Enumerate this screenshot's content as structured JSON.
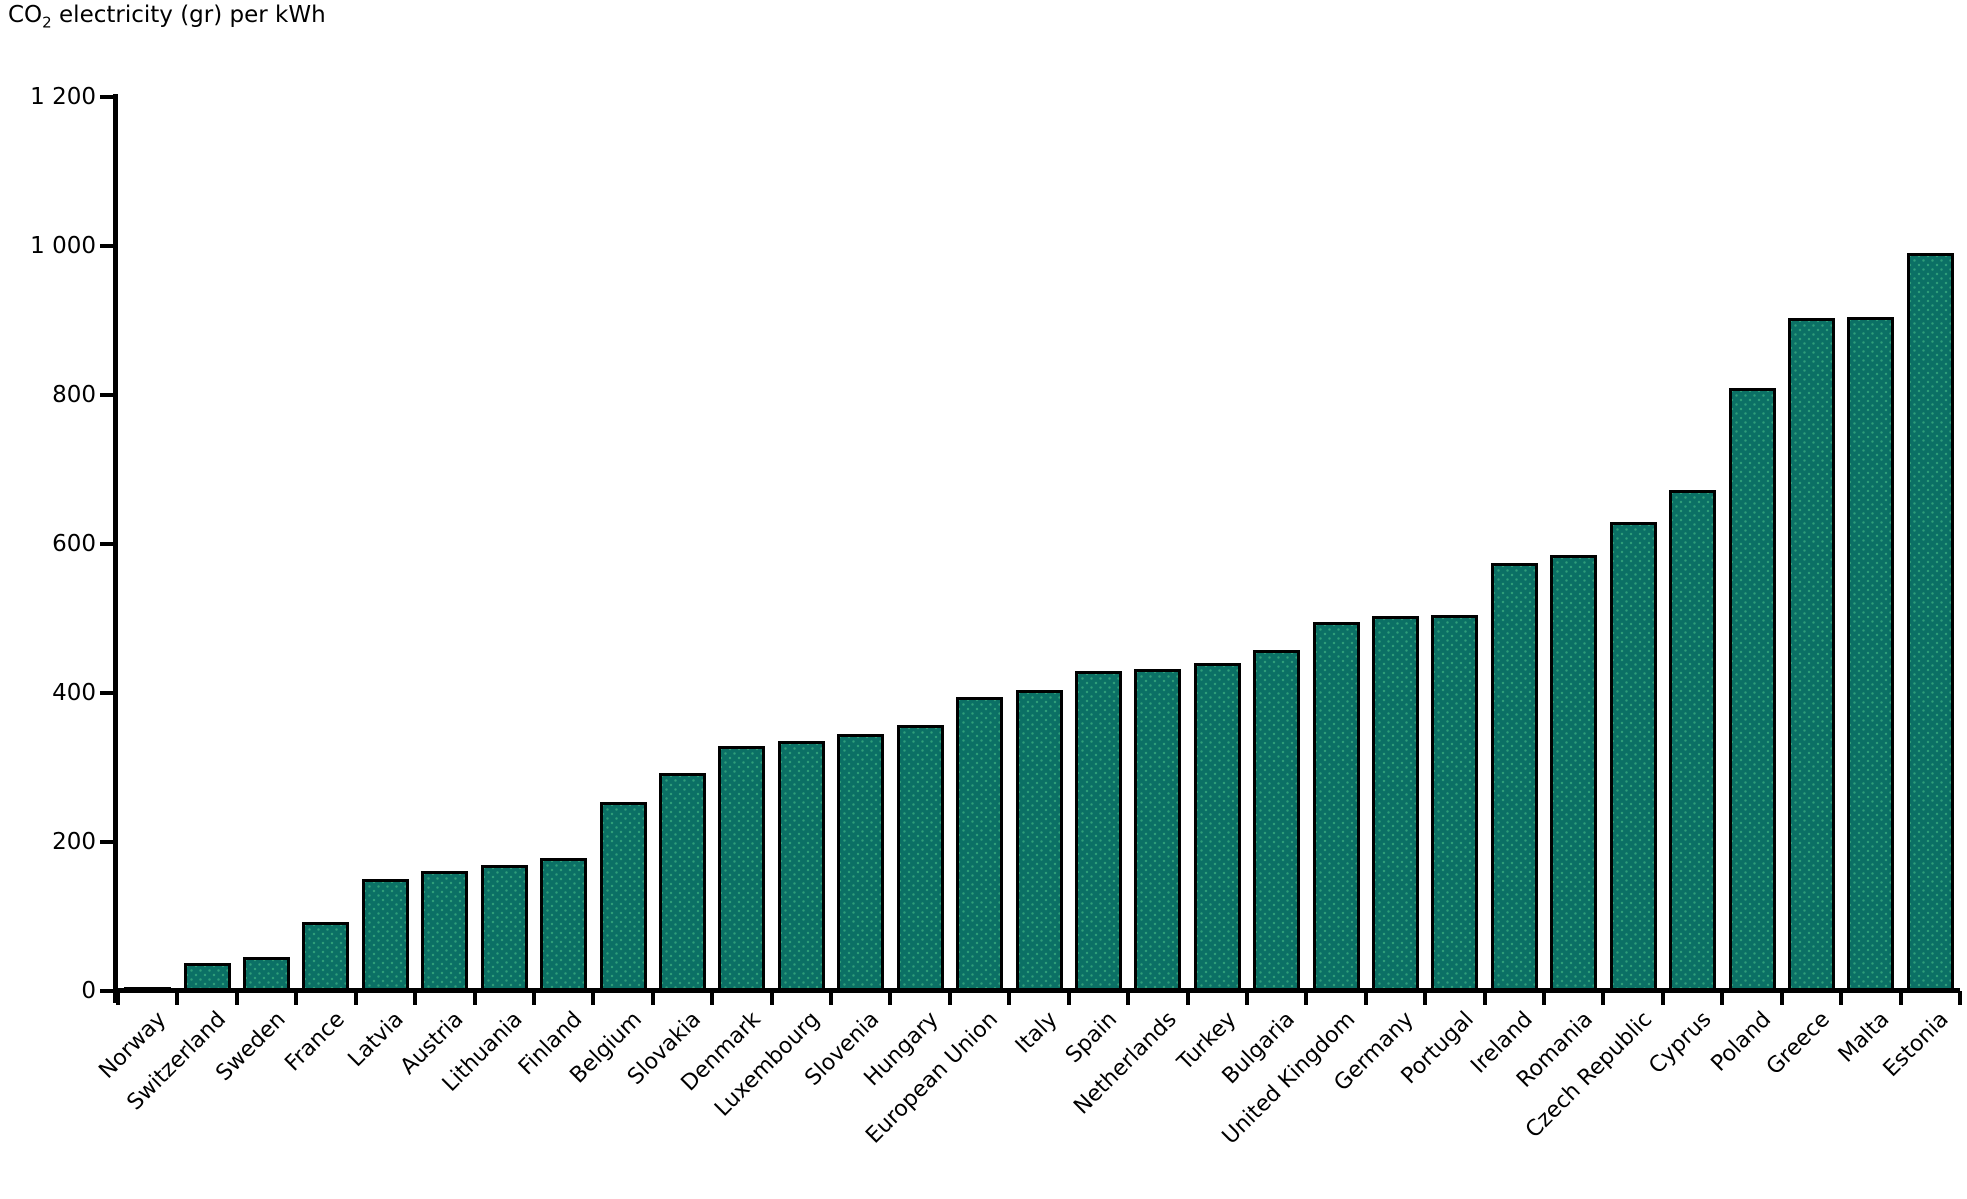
{
  "title": {
    "prefix": "CO",
    "subscript": "2",
    "suffix": " electricity (gr) per kWh"
  },
  "colors": {
    "background": "#ffffff",
    "bar_fill": "#0b7065",
    "bar_dot": "#2f9f7a",
    "bar_border": "#000000",
    "axis": "#000000",
    "text": "#000000"
  },
  "y_axis": {
    "min": 0,
    "max": 1200,
    "step": 200,
    "ticks": [
      {
        "label": "1 200",
        "value": 1200
      },
      {
        "label": "1 000",
        "value": 1000
      },
      {
        "label": "800",
        "value": 800
      },
      {
        "label": "600",
        "value": 600
      },
      {
        "label": "400",
        "value": 400
      },
      {
        "label": "200",
        "value": 200
      },
      {
        "label": "0",
        "value": 0
      }
    ]
  },
  "chart_data": {
    "type": "bar",
    "title": "CO2 electricity (gr) per kWh",
    "xlabel": "",
    "ylabel": "CO2 electricity (gr) per kWh",
    "ylim": [
      0,
      1200
    ],
    "grid": false,
    "legend": false,
    "bar_color": "#0b7065",
    "categories": [
      "Norway",
      "Switzerland",
      "Sweden",
      "France",
      "Latvia",
      "Austria",
      "Lithuania",
      "Finland",
      "Belgium",
      "Slovakia",
      "Denmark",
      "Luxembourg",
      "Slovenia",
      "Hungary",
      "European Union",
      "Italy",
      "Spain",
      "Netherlands",
      "Turkey",
      "Bulgaria",
      "United Kingdom",
      "Germany",
      "Portugal",
      "Ireland",
      "Romania",
      "Czech Republic",
      "Cyprus",
      "Poland",
      "Greece",
      "Malta",
      "Estonia"
    ],
    "values": [
      5,
      37,
      45,
      93,
      151,
      161,
      169,
      178,
      254,
      292,
      329,
      335,
      345,
      357,
      395,
      404,
      430,
      432,
      440,
      458,
      495,
      503,
      505,
      574,
      585,
      630,
      672,
      810,
      904,
      905,
      990
    ]
  }
}
